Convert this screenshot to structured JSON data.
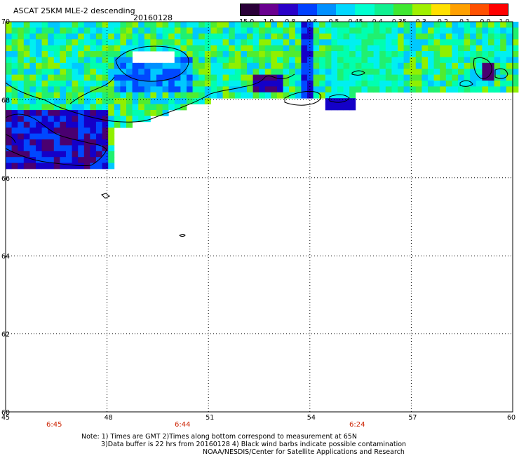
{
  "header": {
    "title": "ASCAT 25KM MLE-2 descending",
    "date": "20160128"
  },
  "colorbar": {
    "labels": [
      "-15.0",
      "-1.0",
      "-0.8",
      "-0.6",
      "-0.5",
      "-0.45",
      "-0.4",
      "-0.35",
      "-0.3",
      "-0.2",
      "-0.1",
      "0.0",
      "1.0"
    ],
    "colors": [
      "#2a0038",
      "#6a0090",
      "#2a00c8",
      "#0040ff",
      "#0090ff",
      "#00d8ff",
      "#00ffd0",
      "#10f090",
      "#40e830",
      "#a0f000",
      "#ffe000",
      "#ffa000",
      "#ff5000",
      "#ff0000"
    ]
  },
  "map": {
    "lat_labels": [
      "70",
      "68",
      "66",
      "64",
      "62",
      "60"
    ],
    "lon_labels": [
      "45",
      "48",
      "51",
      "54",
      "57",
      "60"
    ],
    "region": "lat 60-70N, lon 45-60E"
  },
  "times": [
    "6:45",
    "6:44",
    "6:24"
  ],
  "notes": [
    "Note: 1) Times are GMT 2)Times along bottom correspond to measurement at 65N",
    "3)Data buffer is 22 hrs from 20160128 4) Black wind barbs indicate possible contamination",
    "NOAA/NESDIS/Center for Satellite Applications and Research"
  ]
}
